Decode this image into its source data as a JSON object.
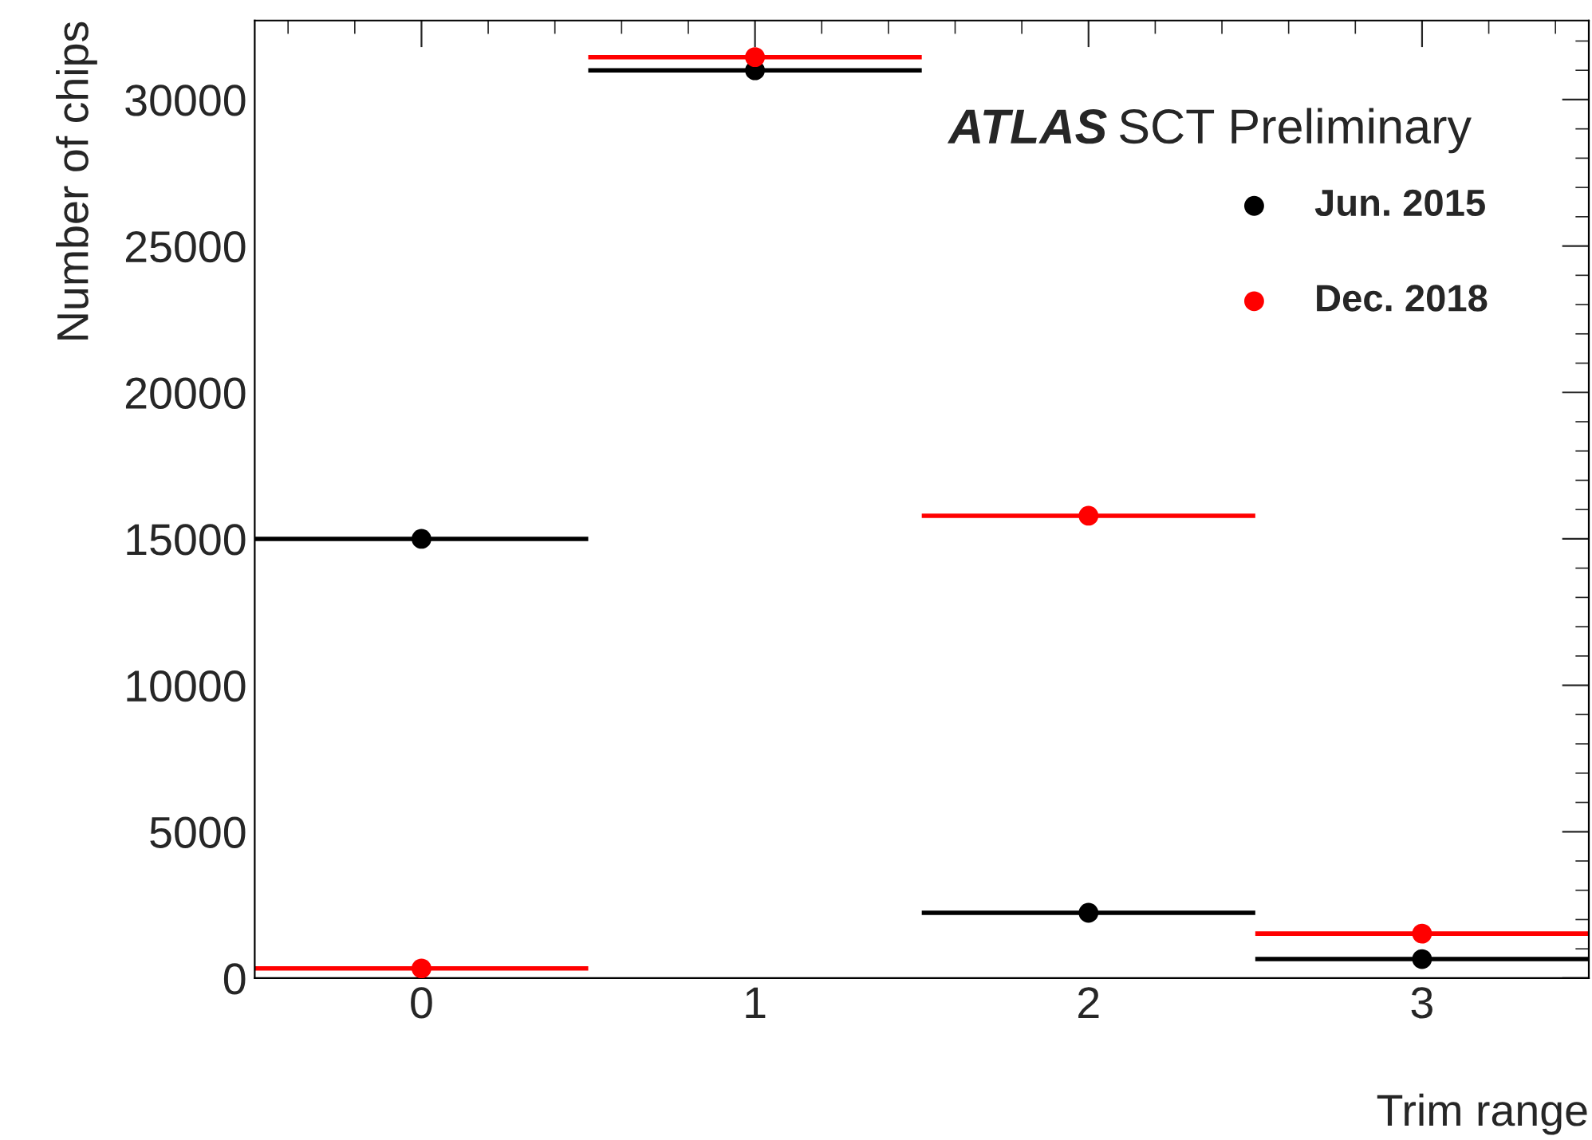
{
  "chart_data": {
    "type": "scatter",
    "xlabel": "Trim range",
    "ylabel": "Number of chips",
    "x": [
      0,
      1,
      2,
      3
    ],
    "series": [
      {
        "name": "Jun. 2015",
        "color": "#000000",
        "values": [
          15000,
          31000,
          2230,
          650
        ],
        "xerrors": [
          0.5,
          0.5,
          0.5,
          0.5
        ]
      },
      {
        "name": "Dec. 2018",
        "color": "#ff0000",
        "values": [
          330,
          31450,
          15790,
          1520
        ],
        "xerrors": [
          0.5,
          0.5,
          0.5,
          0.5
        ]
      }
    ],
    "xlim": [
      -0.5,
      3.5
    ],
    "xticks": [
      0,
      1,
      2,
      3
    ],
    "ylim": [
      0,
      32700
    ],
    "yticks": [
      0,
      5000,
      10000,
      15000,
      20000,
      25000,
      30000
    ],
    "annotations": [
      "ATLAS SCT Preliminary"
    ],
    "marker": "circle",
    "legend": "top right",
    "grid": false
  }
}
